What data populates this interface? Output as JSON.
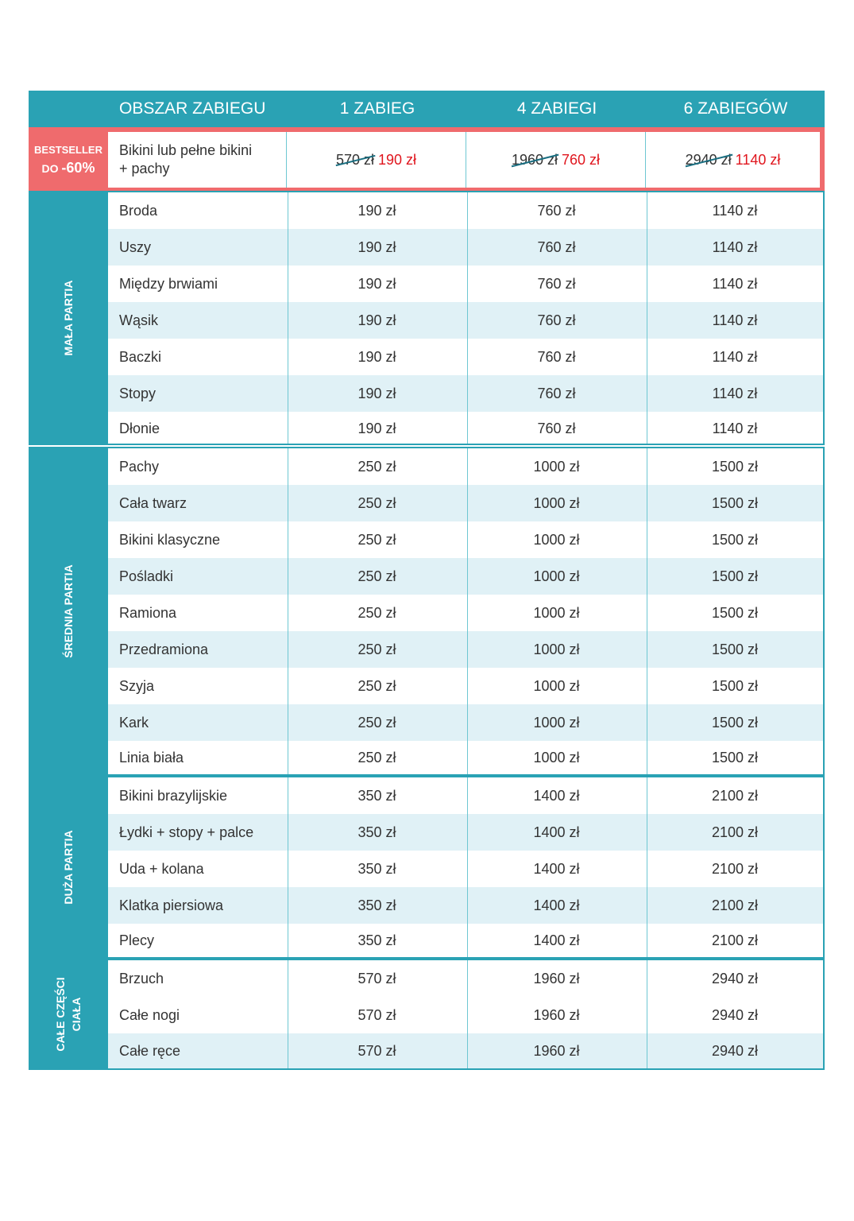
{
  "header": {
    "area": "OBSZAR ZABIEGU",
    "c1": "1 ZABIEG",
    "c2": "4 ZABIEGI",
    "c3": "6 ZABIEGÓW"
  },
  "bestseller": {
    "label_line1": "BESTSELLER",
    "label_do": "DO",
    "label_discount": "-60%",
    "area_line1": "Bikini lub pełne bikini",
    "area_line2": "+ pachy",
    "prices": [
      {
        "old": "570 zł",
        "new": "190 zł"
      },
      {
        "old": "1960 zł",
        "new": "760 zł"
      },
      {
        "old": "2940 zł",
        "new": "1140 zł"
      }
    ]
  },
  "groups": [
    {
      "title": "MAŁA PARTIA",
      "rows": [
        {
          "name": "Broda",
          "p1": "190 zł",
          "p4": "760 zł",
          "p6": "1140 zł"
        },
        {
          "name": "Uszy",
          "p1": "190 zł",
          "p4": "760 zł",
          "p6": "1140 zł"
        },
        {
          "name": "Między brwiami",
          "p1": "190 zł",
          "p4": "760 zł",
          "p6": "1140 zł"
        },
        {
          "name": "Wąsik",
          "p1": "190 zł",
          "p4": "760 zł",
          "p6": "1140 zł"
        },
        {
          "name": "Baczki",
          "p1": "190 zł",
          "p4": "760 zł",
          "p6": "1140 zł"
        },
        {
          "name": "Stopy",
          "p1": "190 zł",
          "p4": "760 zł",
          "p6": "1140 zł"
        },
        {
          "name": "Dłonie",
          "p1": "190 zł",
          "p4": "760 zł",
          "p6": "1140 zł"
        }
      ]
    },
    {
      "title": "ŚREDNIA PARTIA",
      "rows": [
        {
          "name": "Pachy",
          "p1": "250 zł",
          "p4": "1000 zł",
          "p6": "1500 zł"
        },
        {
          "name": "Cała twarz",
          "p1": "250 zł",
          "p4": "1000 zł",
          "p6": "1500 zł"
        },
        {
          "name": "Bikini klasyczne",
          "p1": "250 zł",
          "p4": "1000 zł",
          "p6": "1500 zł"
        },
        {
          "name": "Pośladki",
          "p1": "250 zł",
          "p4": "1000 zł",
          "p6": "1500 zł"
        },
        {
          "name": "Ramiona",
          "p1": "250 zł",
          "p4": "1000 zł",
          "p6": "1500 zł"
        },
        {
          "name": "Przedramiona",
          "p1": "250 zł",
          "p4": "1000 zł",
          "p6": "1500 zł"
        },
        {
          "name": "Szyja",
          "p1": "250 zł",
          "p4": "1000 zł",
          "p6": "1500 zł"
        },
        {
          "name": "Kark",
          "p1": "250 zł",
          "p4": "1000 zł",
          "p6": "1500 zł"
        },
        {
          "name": "Linia biała",
          "p1": "250 zł",
          "p4": "1000 zł",
          "p6": "1500 zł"
        }
      ]
    },
    {
      "title": "DUŻA PARTIA",
      "rows": [
        {
          "name": "Bikini brazylijskie",
          "p1": "350 zł",
          "p4": "1400 zł",
          "p6": "2100 zł"
        },
        {
          "name": "Łydki + stopy + palce",
          "p1": "350 zł",
          "p4": "1400 zł",
          "p6": "2100 zł"
        },
        {
          "name": "Uda + kolana",
          "p1": "350 zł",
          "p4": "1400 zł",
          "p6": "2100 zł"
        },
        {
          "name": "Klatka piersiowa",
          "p1": "350 zł",
          "p4": "1400 zł",
          "p6": "2100 zł"
        },
        {
          "name": "Plecy",
          "p1": "350 zł",
          "p4": "1400 zł",
          "p6": "2100 zł"
        }
      ]
    },
    {
      "title_line1": "CAŁE CZĘŚCI",
      "title_line2": "CIAŁA",
      "rows": [
        {
          "name": "Brzuch",
          "p1": "570 zł",
          "p4": "1960 zł",
          "p6": "2940 zł"
        },
        {
          "name": "Całe nogi",
          "p1": "570 zł",
          "p4": "1960 zł",
          "p6": "2940 zł"
        },
        {
          "name": "Całe ręce",
          "p1": "570 zł",
          "p4": "1960 zł",
          "p6": "2940 zł"
        }
      ]
    }
  ]
}
